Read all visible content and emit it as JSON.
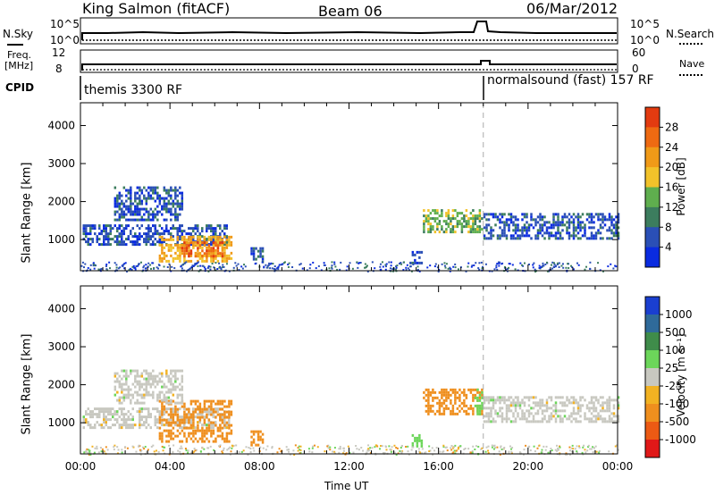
{
  "header": {
    "title": "King Salmon (fitACF)",
    "beam": "Beam 06",
    "date": "06/Mar/2012"
  },
  "side_labels": {
    "nsky": "N.Sky",
    "nsearch": "N.Search",
    "freq": "Freq.",
    "freq_unit": "[MHz]",
    "nave": "Nave",
    "cpid": "CPID"
  },
  "top_panels": {
    "nsky_ticks": [
      "10^5",
      "10^0"
    ],
    "nsearch_ticks": [
      "10^5",
      "10^0"
    ],
    "freq_ticks": [
      "12",
      "8"
    ],
    "nave_ticks": [
      "60",
      "0"
    ]
  },
  "cpid_labels": {
    "left": "themis 3300 RF",
    "right": "normalsound (fast) 157 RF"
  },
  "chart_data": [
    {
      "type": "heatmap",
      "parameter": "Power",
      "ylabel": "Slant Range [km]",
      "xlabel": "",
      "xlim": [
        "00:00",
        "24:00"
      ],
      "ylim": [
        180,
        4600
      ],
      "yticks": [
        "1000",
        "2000",
        "3000",
        "4000"
      ],
      "colorbar": {
        "label": "Power [dB]",
        "ticks": [
          "4",
          "8",
          "12",
          "16",
          "20",
          "24",
          "28"
        ],
        "colors": [
          "#0a2be0",
          "#2a4fb6",
          "#3c7d5e",
          "#5fae4e",
          "#f2c22a",
          "#f09a18",
          "#ee6a12",
          "#e33b10"
        ]
      },
      "regions": [
        {
          "t0": 0.1,
          "t1": 6.6,
          "r0": 900,
          "r1": 1400,
          "value": 8
        },
        {
          "t0": 3.5,
          "t1": 6.7,
          "r0": 450,
          "r1": 1100,
          "value": 22
        },
        {
          "t0": 4.5,
          "t1": 6.3,
          "r0": 550,
          "r1": 950,
          "value": 28
        },
        {
          "t0": 1.5,
          "t1": 4.5,
          "r0": 1500,
          "r1": 2400,
          "value": 8
        },
        {
          "t0": 15.3,
          "t1": 17.9,
          "r0": 1200,
          "r1": 1800,
          "value": 16
        },
        {
          "t0": 18.0,
          "t1": 24.0,
          "r0": 1000,
          "r1": 1700,
          "value": 8
        },
        {
          "t0": 7.6,
          "t1": 8.1,
          "r0": 400,
          "r1": 800,
          "value": 8
        },
        {
          "t0": 14.7,
          "t1": 15.2,
          "r0": 400,
          "r1": 700,
          "value": 8
        }
      ]
    },
    {
      "type": "heatmap",
      "parameter": "Velocity",
      "ylabel": "Slant Range [km]",
      "xlabel": "Time UT",
      "xlim": [
        "00:00",
        "24:00"
      ],
      "ylim": [
        180,
        4600
      ],
      "yticks": [
        "1000",
        "2000",
        "3000",
        "4000"
      ],
      "xticks": [
        "00:00",
        "04:00",
        "08:00",
        "12:00",
        "16:00",
        "20:00",
        "00:00"
      ],
      "colorbar": {
        "label": "Velocity [m s⁻¹]",
        "ticks": [
          "1000",
          "500",
          "100",
          "25",
          "-25",
          "-100",
          "-500",
          "-1000"
        ],
        "colors": [
          "#1a3fd0",
          "#2f6a9a",
          "#3f8c4a",
          "#6cd65a",
          "#c8c8c0",
          "#f2b222",
          "#ef8f1e",
          "#ec5a14",
          "#e01818"
        ]
      },
      "regions": [
        {
          "t0": 0.1,
          "t1": 6.6,
          "r0": 900,
          "r1": 1400,
          "value": 0
        },
        {
          "t0": 3.5,
          "t1": 6.7,
          "r0": 500,
          "r1": 1600,
          "value": -150
        },
        {
          "t0": 1.5,
          "t1": 4.5,
          "r0": 1500,
          "r1": 2400,
          "value": 0
        },
        {
          "t0": 15.3,
          "t1": 17.9,
          "r0": 1200,
          "r1": 1900,
          "value": -150
        },
        {
          "t0": 17.6,
          "t1": 17.9,
          "r0": 1200,
          "r1": 1900,
          "value": 60
        },
        {
          "t0": 18.0,
          "t1": 24.0,
          "r0": 1000,
          "r1": 1700,
          "value": 0
        },
        {
          "t0": 7.6,
          "t1": 8.1,
          "r0": 400,
          "r1": 800,
          "value": -200
        },
        {
          "t0": 14.7,
          "t1": 15.2,
          "r0": 400,
          "r1": 700,
          "value": 60
        }
      ]
    }
  ]
}
